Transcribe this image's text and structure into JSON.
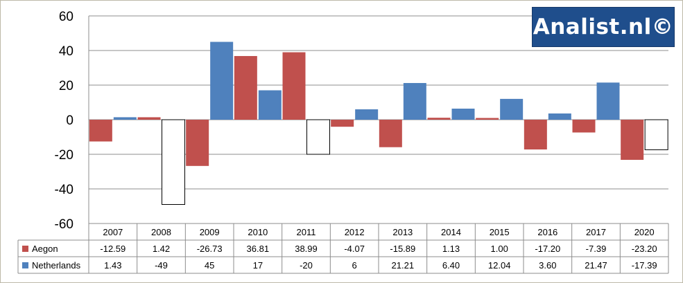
{
  "chart_data": {
    "type": "bar",
    "categories": [
      "2007",
      "2008",
      "2009",
      "2010",
      "2011",
      "2012",
      "2013",
      "2014",
      "2015",
      "2016",
      "2017",
      "2020"
    ],
    "series": [
      {
        "name": "Aegon",
        "color": "#c0504d",
        "values": [
          -12.59,
          1.42,
          -26.73,
          36.81,
          38.99,
          -4.07,
          -15.89,
          1.13,
          1.0,
          -17.2,
          -7.39,
          -23.2
        ],
        "labels": [
          "-12.59",
          "1.42",
          "-26.73",
          "36.81",
          "38.99",
          "-4.07",
          "-15.89",
          "1.13",
          "1.00",
          "-17.20",
          "-7.39",
          "-23.20"
        ]
      },
      {
        "name": "Netherlands",
        "color": "#4f81bd",
        "negative_fill": "#ffffff",
        "values": [
          1.43,
          -49,
          45,
          17,
          -20,
          6,
          21.21,
          6.4,
          12.04,
          3.6,
          21.47,
          -17.39
        ],
        "labels": [
          "1.43",
          "-49",
          "45",
          "17",
          "-20",
          "6",
          "21.21",
          "6.40",
          "12.04",
          "3.60",
          "21.47",
          "-17.39"
        ]
      }
    ],
    "ylim": [
      -60,
      60
    ],
    "yticks": [
      "60",
      "40",
      "20",
      "0",
      "-20",
      "-40",
      "-60"
    ],
    "grid": true,
    "data_table": true
  },
  "logo": {
    "text": "Analist.nl©"
  }
}
